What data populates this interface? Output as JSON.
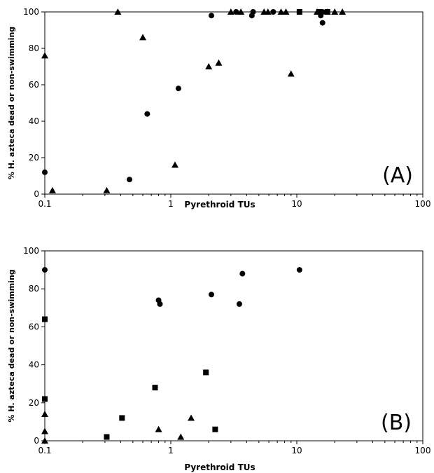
{
  "chart_data": [
    {
      "type": "scatter",
      "panel_label": "(A)",
      "xlabel": "Pyrethroid TUs",
      "ylabel": "% H. azteca dead or non-swimming",
      "xscale": "log",
      "xlim": [
        0.1,
        100
      ],
      "ylim": [
        0,
        100
      ],
      "xticks": [
        "0.1",
        "1",
        "10",
        "100"
      ],
      "yticks": [
        "0",
        "20",
        "40",
        "60",
        "80",
        "100"
      ],
      "grid": false,
      "legend": "none",
      "series": [
        {
          "marker": "circle",
          "points": [
            [
              0.1,
              12
            ],
            [
              0.47,
              8
            ],
            [
              0.65,
              44
            ],
            [
              1.15,
              58
            ],
            [
              2.1,
              98
            ],
            [
              3.3,
              100
            ],
            [
              4.4,
              98
            ],
            [
              4.5,
              100
            ],
            [
              6.5,
              100
            ],
            [
              15.5,
              98
            ],
            [
              16,
              94
            ],
            [
              16,
              100
            ]
          ]
        },
        {
          "marker": "triangle",
          "points": [
            [
              0.1,
              76
            ],
            [
              0.115,
              2
            ],
            [
              0.31,
              2
            ],
            [
              0.38,
              100
            ],
            [
              0.6,
              86
            ],
            [
              1.08,
              16
            ],
            [
              2.0,
              70
            ],
            [
              2.4,
              72
            ],
            [
              3.0,
              100
            ],
            [
              3.6,
              100
            ],
            [
              5.5,
              100
            ],
            [
              5.9,
              100
            ],
            [
              7.5,
              100
            ],
            [
              8.2,
              100
            ],
            [
              9.0,
              66
            ],
            [
              14.5,
              100
            ],
            [
              17.5,
              100
            ],
            [
              20,
              100
            ],
            [
              23,
              100
            ]
          ]
        },
        {
          "marker": "square",
          "points": [
            [
              10.5,
              100
            ],
            [
              15,
              100
            ],
            [
              17.5,
              100
            ]
          ]
        }
      ]
    },
    {
      "type": "scatter",
      "panel_label": "(B)",
      "xlabel": "Pyrethroid TUs",
      "ylabel": "% H. azteca dead or non-swimming",
      "xscale": "log",
      "xlim": [
        0.1,
        100
      ],
      "ylim": [
        0,
        100
      ],
      "xticks": [
        "0.1",
        "1",
        "10",
        "100"
      ],
      "yticks": [
        "0",
        "20",
        "40",
        "60",
        "80",
        "100"
      ],
      "grid": false,
      "legend": "none",
      "series": [
        {
          "marker": "circle",
          "points": [
            [
              0.1,
              90
            ],
            [
              0.8,
              74
            ],
            [
              0.82,
              72
            ],
            [
              2.1,
              77
            ],
            [
              3.5,
              72
            ],
            [
              3.7,
              88
            ],
            [
              10.5,
              90
            ]
          ]
        },
        {
          "marker": "square",
          "points": [
            [
              0.1,
              64
            ],
            [
              0.1,
              22
            ],
            [
              0.31,
              2
            ],
            [
              0.41,
              12
            ],
            [
              0.75,
              28
            ],
            [
              1.9,
              36
            ],
            [
              2.25,
              6
            ]
          ]
        },
        {
          "marker": "triangle",
          "points": [
            [
              0.1,
              14
            ],
            [
              0.1,
              5
            ],
            [
              0.1,
              0
            ],
            [
              0.8,
              6
            ],
            [
              1.2,
              2
            ],
            [
              1.45,
              12
            ]
          ]
        }
      ]
    }
  ]
}
